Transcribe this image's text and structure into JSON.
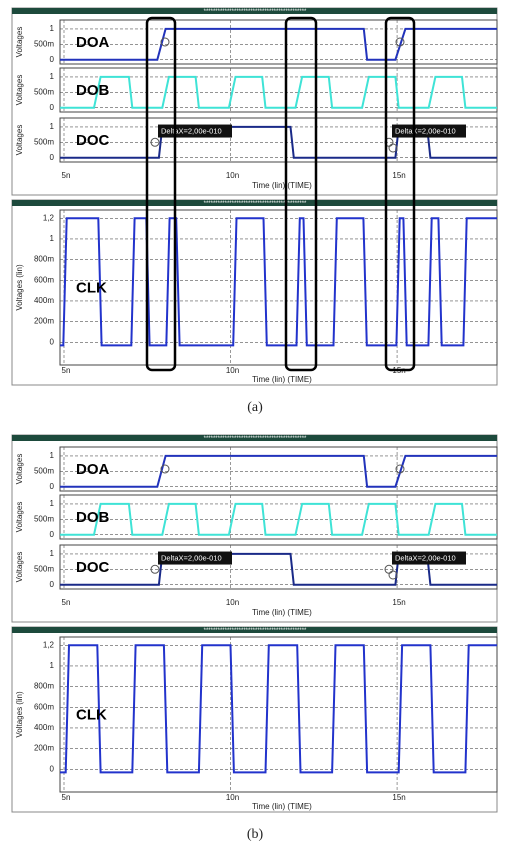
{
  "chart_data": [
    {
      "type": "line",
      "caption": "(a)",
      "top": {
        "header": "********************************************",
        "xlabel": "Time (lin) (TIME)",
        "xlim": [
          4.88,
          18
        ],
        "xticks": [
          {
            "value": 5,
            "label": "5n"
          },
          {
            "value": 10,
            "label": "10n"
          },
          {
            "value": 15,
            "label": "15n"
          }
        ],
        "subplots": [
          {
            "label": "DOA",
            "ylabel": "Voltages",
            "color": "#2233bb",
            "ylim": [
              -0.14,
              1.29
            ],
            "yticks": [
              0,
              {
                "value": 0.5,
                "label": "500m"
              },
              1
            ],
            "x": [
              4.88,
              7.8,
              8.05,
              14.0,
              14.1,
              14.95,
              15.25,
              18
            ],
            "values": [
              0,
              0,
              1,
              1,
              0,
              0,
              1,
              1
            ]
          },
          {
            "label": "DOB",
            "ylabel": "Voltages",
            "color": "#3fe3d6",
            "ylim": [
              -0.14,
              1.29
            ],
            "yticks": [
              0,
              {
                "value": 0.5,
                "label": "500m"
              },
              1
            ],
            "x": [
              4.88,
              5.9,
              6.1,
              6.95,
              7.05,
              7.95,
              8.15,
              8.95,
              9.05,
              9.95,
              10.15,
              10.95,
              11.05,
              11.95,
              12.15,
              12.95,
              13.05,
              13.95,
              14.15,
              14.95,
              15.05,
              15.95,
              16.15,
              16.95,
              17.05,
              18
            ],
            "values": [
              0,
              0,
              1,
              1,
              0,
              0,
              1,
              1,
              0,
              0,
              1,
              1,
              0,
              0,
              1,
              1,
              0,
              0,
              1,
              1,
              0,
              0,
              1,
              1,
              0,
              0
            ]
          },
          {
            "label": "DOC",
            "ylabel": "Voltages",
            "color": "#1a2a88",
            "ylim": [
              -0.14,
              1.29
            ],
            "yticks": [
              0,
              {
                "value": 0.5,
                "label": "500m"
              },
              1
            ],
            "x": [
              4.88,
              7.85,
              7.95,
              11.8,
              11.9,
              14.95,
              15.05,
              15.9,
              16.0,
              18
            ],
            "values": [
              0,
              0,
              1,
              1,
              0,
              0,
              1,
              1,
              0,
              0
            ],
            "annotations": [
              "DeltaX=2,00e-010",
              "DeltaX=2,00e-010"
            ]
          }
        ]
      },
      "bottom": {
        "header": "********************************************",
        "xlabel": "Time (lin) (TIME)",
        "xlim": [
          4.88,
          18
        ],
        "xticks": [
          {
            "value": 5,
            "label": "5n"
          },
          {
            "value": 10,
            "label": "10n"
          },
          {
            "value": 15,
            "label": "15n"
          }
        ],
        "subplots": [
          {
            "label": "CLK",
            "ylabel": "Voltages (lin)",
            "color": "#2233cc",
            "ylim": [
              -0.22,
              1.28
            ],
            "yticks": [
              0,
              {
                "value": 0.2,
                "label": "200m"
              },
              {
                "value": 0.4,
                "label": "400m"
              },
              {
                "value": 0.6,
                "label": "600m"
              },
              {
                "value": 0.8,
                "label": "800m"
              },
              1,
              {
                "value": 1.2,
                "label": "1,2"
              }
            ],
            "x": [
              4.88,
              4.98,
              5.08,
              6.03,
              6.13,
              7.02,
              7.12,
              7.47,
              7.57,
              8.07,
              8.17,
              8.37,
              8.47,
              10.08,
              10.18,
              10.99,
              11.09,
              11.98,
              12.08,
              12.19,
              12.29,
              13.09,
              13.19,
              13.99,
              14.09,
              14.98,
              15.08,
              15.19,
              15.29,
              15.94,
              16.04,
              16.24,
              16.34,
              16.99,
              17.09,
              18
            ],
            "values": [
              -0.03,
              -0.03,
              1.2,
              1.2,
              -0.03,
              -0.03,
              1.2,
              1.2,
              -0.03,
              -0.03,
              1.2,
              1.2,
              -0.03,
              -0.03,
              1.2,
              1.2,
              -0.03,
              -0.03,
              1.2,
              1.2,
              -0.03,
              -0.03,
              1.2,
              1.2,
              -0.03,
              -0.03,
              1.2,
              1.2,
              -0.03,
              -0.03,
              1.2,
              1.2,
              -0.03,
              -0.03,
              1.2,
              1.2
            ]
          }
        ]
      }
    },
    {
      "type": "line",
      "caption": "(b)",
      "top": {
        "header": "********************************************",
        "xlabel": "Time (lin) (TIME)",
        "xlim": [
          4.88,
          18
        ],
        "xticks": [
          {
            "value": 5,
            "label": "5n"
          },
          {
            "value": 10,
            "label": "10n"
          },
          {
            "value": 15,
            "label": "15n"
          }
        ],
        "subplots": [
          {
            "label": "DOA",
            "ylabel": "Voltages",
            "color": "#2233bb",
            "ylim": [
              -0.14,
              1.29
            ],
            "yticks": [
              0,
              {
                "value": 0.5,
                "label": "500m"
              },
              1
            ],
            "x": [
              4.88,
              7.8,
              8.05,
              14.0,
              14.1,
              14.95,
              15.25,
              18
            ],
            "values": [
              0,
              0,
              1,
              1,
              0,
              0,
              1,
              1
            ]
          },
          {
            "label": "DOB",
            "ylabel": "Voltages",
            "color": "#3fe3d6",
            "ylim": [
              -0.14,
              1.29
            ],
            "yticks": [
              0,
              {
                "value": 0.5,
                "label": "500m"
              },
              1
            ],
            "x": [
              4.88,
              5.9,
              6.1,
              6.95,
              7.05,
              7.95,
              8.15,
              8.95,
              9.05,
              9.95,
              10.15,
              10.95,
              11.05,
              11.95,
              12.15,
              12.95,
              13.05,
              13.95,
              14.15,
              14.95,
              15.05,
              15.95,
              16.15,
              16.95,
              17.05,
              18
            ],
            "values": [
              0,
              0,
              1,
              1,
              0,
              0,
              1,
              1,
              0,
              0,
              1,
              1,
              0,
              0,
              1,
              1,
              0,
              0,
              1,
              1,
              0,
              0,
              1,
              1,
              0,
              0
            ]
          },
          {
            "label": "DOC",
            "ylabel": "Voltages",
            "color": "#1a2a88",
            "ylim": [
              -0.14,
              1.29
            ],
            "yticks": [
              0,
              {
                "value": 0.5,
                "label": "500m"
              },
              1
            ],
            "x": [
              4.88,
              7.85,
              7.95,
              11.8,
              11.9,
              14.95,
              15.05,
              15.9,
              16.0,
              18
            ],
            "values": [
              0,
              0,
              1,
              1,
              0,
              0,
              1,
              1,
              0,
              0
            ],
            "annotations": [
              "DeltaX=2,00e-010",
              "DeltaX=2,00e-010"
            ]
          }
        ]
      },
      "bottom": {
        "header": "********************************************",
        "xlabel": "Time (lin) (TIME)",
        "xlim": [
          4.88,
          18
        ],
        "xticks": [
          {
            "value": 5,
            "label": "5n"
          },
          {
            "value": 10,
            "label": "10n"
          },
          {
            "value": 15,
            "label": "15n"
          }
        ],
        "subplots": [
          {
            "label": "CLK",
            "ylabel": "Voltages (lin)",
            "color": "#2233cc",
            "ylim": [
              -0.22,
              1.28
            ],
            "yticks": [
              0,
              {
                "value": 0.2,
                "label": "200m"
              },
              {
                "value": 0.4,
                "label": "400m"
              },
              {
                "value": 0.6,
                "label": "600m"
              },
              {
                "value": 0.8,
                "label": "800m"
              },
              1,
              {
                "value": 1.2,
                "label": "1,2"
              }
            ],
            "x": [
              4.88,
              5.05,
              5.15,
              6.0,
              6.1,
              7.05,
              7.15,
              8.0,
              8.1,
              9.05,
              9.15,
              10.0,
              10.1,
              11.05,
              11.15,
              12.0,
              12.1,
              13.05,
              13.15,
              14.0,
              14.1,
              15.05,
              15.15,
              16.0,
              16.1,
              17.05,
              17.15,
              18
            ],
            "values": [
              -0.03,
              -0.03,
              1.2,
              1.2,
              -0.03,
              -0.03,
              1.2,
              1.2,
              -0.03,
              -0.03,
              1.2,
              1.2,
              -0.03,
              -0.03,
              1.2,
              1.2,
              -0.03,
              -0.03,
              1.2,
              1.2,
              -0.03,
              -0.03,
              1.2,
              1.2,
              -0.03,
              -0.03,
              1.2,
              1.2
            ]
          }
        ]
      }
    }
  ]
}
